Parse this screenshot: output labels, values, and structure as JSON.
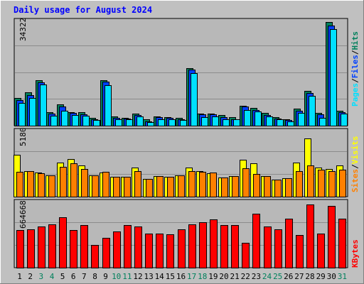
{
  "title": "Daily usage for August 2024",
  "colors": {
    "background": "#c0c0c0",
    "title": "#0000ff",
    "plot_bg": "#b8b8b8",
    "hits": "#00805c",
    "files": "#0040ff",
    "pages": "#00e0ff",
    "visits": "#ffff00",
    "sites": "#ff8000",
    "kbytes": "#ff0000",
    "weekend_label": "#00805c",
    "weekday_label": "#000000"
  },
  "legend": {
    "top": {
      "pages": "Pages",
      "sep1": "/",
      "files": "Files",
      "sep2": "/",
      "hits": "Hits"
    },
    "middle": {
      "sites": "Sites",
      "sep": "/",
      "visits": "Visits"
    },
    "bottom": {
      "kbytes": "KBytes"
    }
  },
  "chart_data": [
    {
      "type": "bar",
      "title": "Daily usage for August 2024",
      "categories": [
        "1",
        "2",
        "3",
        "4",
        "5",
        "6",
        "7",
        "8",
        "9",
        "10",
        "11",
        "12",
        "13",
        "14",
        "15",
        "16",
        "17",
        "18",
        "19",
        "20",
        "21",
        "22",
        "23",
        "24",
        "25",
        "26",
        "27",
        "28",
        "29",
        "30",
        "31"
      ],
      "weekend_days": [
        "3",
        "4",
        "10",
        "11",
        "17",
        "18",
        "24",
        "25",
        "31"
      ],
      "ymax_label": "34322",
      "ylim": [
        0,
        34322
      ],
      "series": [
        {
          "name": "Hits",
          "values": [
            9000,
            11000,
            15000,
            4500,
            7000,
            4500,
            4500,
            2500,
            15000,
            3000,
            2500,
            4000,
            2000,
            3000,
            2800,
            2500,
            19000,
            4000,
            4000,
            3400,
            2700,
            6500,
            5800,
            4200,
            2800,
            2200,
            5500,
            11500,
            4100,
            34000,
            5000
          ]
        },
        {
          "name": "Files",
          "values": [
            8300,
            10000,
            14200,
            4000,
            6300,
            4100,
            3800,
            2200,
            14500,
            2600,
            2300,
            3400,
            1500,
            2700,
            2600,
            2200,
            18500,
            3700,
            3700,
            2800,
            2200,
            6200,
            5200,
            3600,
            2400,
            1800,
            4800,
            10800,
            3700,
            33000,
            4400
          ]
        },
        {
          "name": "Pages",
          "values": [
            7500,
            9000,
            13500,
            3200,
            5000,
            3500,
            3300,
            1800,
            13300,
            2000,
            2100,
            3000,
            1200,
            2200,
            2100,
            1800,
            17200,
            2800,
            3000,
            2200,
            2000,
            5200,
            4600,
            3000,
            2000,
            1400,
            4200,
            9900,
            2600,
            31800,
            4000
          ]
        }
      ]
    },
    {
      "type": "bar",
      "categories": [
        "1",
        "2",
        "3",
        "4",
        "5",
        "6",
        "7",
        "8",
        "9",
        "10",
        "11",
        "12",
        "13",
        "14",
        "15",
        "16",
        "17",
        "18",
        "19",
        "20",
        "21",
        "22",
        "23",
        "24",
        "25",
        "26",
        "27",
        "28",
        "29",
        "30",
        "31"
      ],
      "ymax_label": "5180",
      "ylim": [
        0,
        5180
      ],
      "series": [
        {
          "name": "Visits",
          "values": [
            3300,
            2050,
            1900,
            1700,
            2700,
            3000,
            2500,
            1700,
            1900,
            1600,
            1600,
            2300,
            1400,
            1650,
            1600,
            1700,
            2300,
            2050,
            1850,
            1500,
            1650,
            2900,
            2650,
            1650,
            1350,
            1450,
            2700,
            4600,
            2300,
            2200,
            2450
          ]
        },
        {
          "name": "Sites",
          "values": [
            1950,
            2050,
            1850,
            1700,
            2350,
            2650,
            2200,
            1700,
            1950,
            1600,
            1600,
            2000,
            1400,
            1650,
            1600,
            1700,
            2050,
            1950,
            1900,
            1500,
            1650,
            2250,
            1800,
            1650,
            1350,
            1450,
            2000,
            2450,
            2150,
            2050,
            2150
          ]
        }
      ]
    },
    {
      "type": "bar",
      "categories": [
        "1",
        "2",
        "3",
        "4",
        "5",
        "6",
        "7",
        "8",
        "9",
        "10",
        "11",
        "12",
        "13",
        "14",
        "15",
        "16",
        "17",
        "18",
        "19",
        "20",
        "21",
        "22",
        "23",
        "24",
        "25",
        "26",
        "27",
        "28",
        "29",
        "30",
        "31"
      ],
      "ymax_label": "664668",
      "ylim": [
        0,
        664668
      ],
      "series": [
        {
          "name": "KBytes",
          "values": [
            380000,
            390000,
            420000,
            440000,
            510000,
            380000,
            430000,
            230000,
            300000,
            370000,
            430000,
            420000,
            350000,
            350000,
            340000,
            390000,
            440000,
            460000,
            490000,
            430000,
            430000,
            250000,
            550000,
            420000,
            390000,
            500000,
            330000,
            640000,
            350000,
            630000,
            500000
          ]
        }
      ]
    }
  ]
}
